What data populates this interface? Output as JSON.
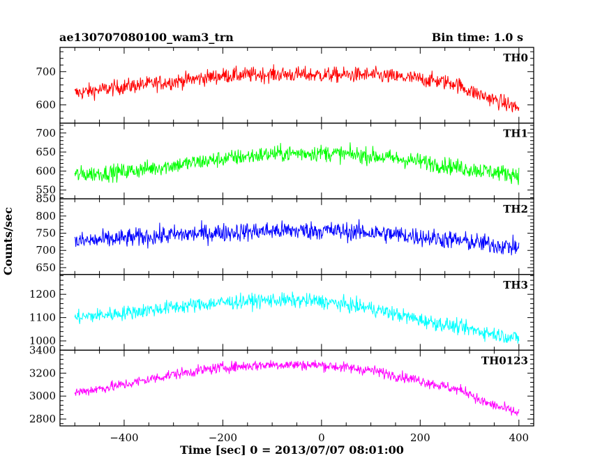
{
  "chart_data": {
    "type": "line",
    "title": "ae130707080100_wam3_trn",
    "subtitle": "Bin time: 1.0 s",
    "xlabel": "Time [sec] 0 = 2013/07/07 08:01:00",
    "ylabel": "Counts/sec",
    "xlim": [
      -530,
      430
    ],
    "x_range": [
      -500,
      400
    ],
    "x_ticks": [
      -400,
      -200,
      0,
      200,
      400
    ],
    "grid": false,
    "panels": [
      {
        "name": "TH0",
        "color": "#ff0000",
        "ylim": [
          545,
          773
        ],
        "y_ticks": [
          600,
          700
        ],
        "profile_x": [
          -500,
          -400,
          -300,
          -200,
          -100,
          0,
          100,
          200,
          270,
          300,
          350,
          400
        ],
        "profile_mean": [
          635,
          655,
          670,
          688,
          692,
          690,
          690,
          678,
          665,
          642,
          615,
          590
        ],
        "noise_amplitude": 30
      },
      {
        "name": "TH1",
        "color": "#00ff00",
        "ylim": [
          527,
          726
        ],
        "y_ticks": [
          550,
          600,
          650,
          700
        ],
        "profile_x": [
          -500,
          -400,
          -300,
          -200,
          -100,
          0,
          100,
          200,
          300,
          400
        ],
        "profile_mean": [
          590,
          598,
          615,
          632,
          645,
          648,
          640,
          625,
          605,
          590
        ],
        "noise_amplitude": 28
      },
      {
        "name": "TH2",
        "color": "#0000ff",
        "ylim": [
          630,
          850
        ],
        "y_ticks": [
          650,
          700,
          750,
          800,
          850
        ],
        "profile_x": [
          -500,
          -400,
          -300,
          -200,
          -100,
          0,
          100,
          200,
          300,
          400
        ],
        "profile_mean": [
          725,
          735,
          745,
          752,
          757,
          758,
          752,
          740,
          725,
          708
        ],
        "noise_amplitude": 35
      },
      {
        "name": "TH3",
        "color": "#00ffff",
        "ylim": [
          960,
          1285
        ],
        "y_ticks": [
          1000,
          1100,
          1200
        ],
        "profile_x": [
          -500,
          -400,
          -300,
          -200,
          -100,
          0,
          100,
          200,
          300,
          400
        ],
        "profile_mean": [
          1100,
          1120,
          1145,
          1165,
          1175,
          1170,
          1140,
          1090,
          1050,
          1010
        ],
        "noise_amplitude": 40
      },
      {
        "name": "TH0123",
        "color": "#ff00ff",
        "ylim": [
          2740,
          3400
        ],
        "y_ticks": [
          2800,
          3000,
          3200,
          3400
        ],
        "profile_x": [
          -500,
          -400,
          -300,
          -200,
          -100,
          0,
          100,
          200,
          300,
          320,
          400
        ],
        "profile_mean": [
          3030,
          3100,
          3190,
          3250,
          3275,
          3270,
          3225,
          3135,
          3030,
          2960,
          2850
        ],
        "noise_amplitude": 60
      }
    ]
  }
}
